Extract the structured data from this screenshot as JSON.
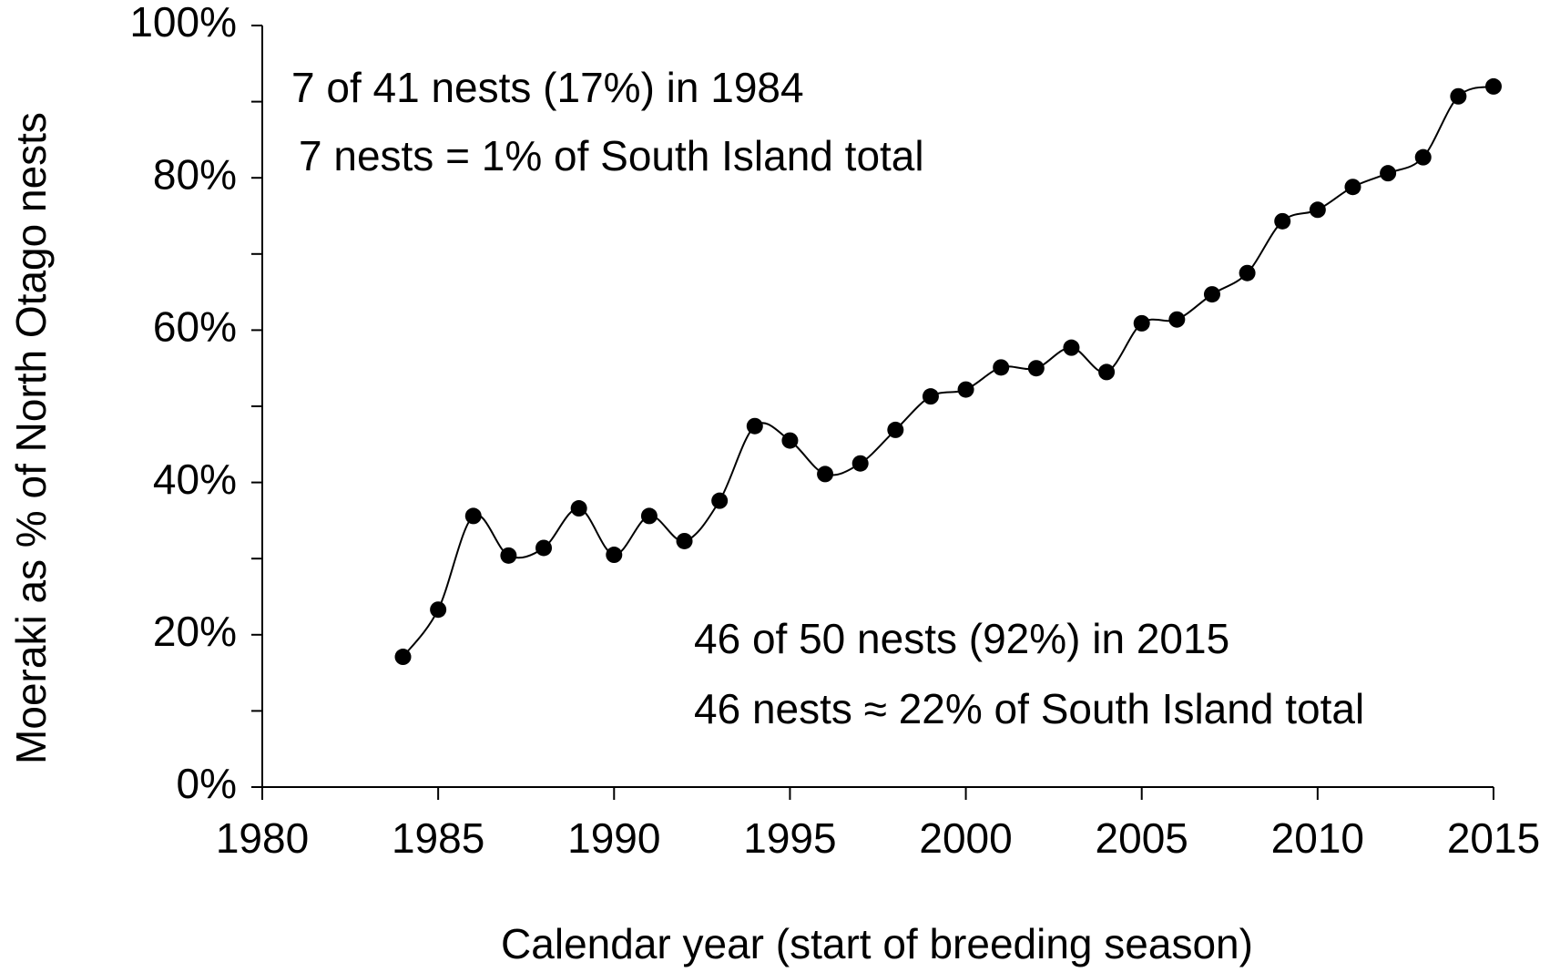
{
  "chart_data": {
    "type": "line",
    "x_label": "Calendar year (start of breeding season)",
    "y_label": "Moeraki as % of North Otago nests",
    "annotations": [
      "7 of 41 nests (17%) in 1984",
      "7 nests = 1% of South Island total",
      "46 of 50 nests (92%) in 2015",
      "46 nests ≈ 22% of South Island total"
    ],
    "x": [
      1984,
      1985,
      1986,
      1987,
      1988,
      1989,
      1990,
      1991,
      1992,
      1993,
      1994,
      1995,
      1996,
      1997,
      1998,
      1999,
      2000,
      2001,
      2002,
      2003,
      2004,
      2005,
      2006,
      2007,
      2008,
      2009,
      2010,
      2011,
      2012,
      2013,
      2014,
      2015
    ],
    "series": [
      {
        "color": "#000000",
        "values": [
          17.1,
          23.3,
          35.6,
          30.4,
          31.4,
          36.6,
          30.5,
          35.6,
          32.3,
          37.6,
          47.4,
          45.5,
          41.1,
          42.5,
          46.9,
          51.3,
          52.2,
          55.1,
          55.0,
          57.7,
          54.5,
          60.9,
          61.4,
          64.7,
          67.5,
          74.3,
          75.8,
          78.8,
          80.6,
          82.7,
          90.7,
          92.0
        ]
      }
    ],
    "xlim": [
      1980,
      2015
    ],
    "xticks": [
      1980,
      1985,
      1990,
      1995,
      2000,
      2005,
      2010,
      2015
    ],
    "ylim": [
      0,
      100
    ],
    "yticks": [
      {
        "value": 0,
        "label": "0%"
      },
      {
        "value": 20,
        "label": "20%"
      },
      {
        "value": 40,
        "label": "40%"
      },
      {
        "value": 60,
        "label": "60%"
      },
      {
        "value": 80,
        "label": "80%"
      },
      {
        "value": 100,
        "label": "100%"
      }
    ],
    "y_minor_ticks": [
      10,
      30,
      50,
      70,
      90
    ],
    "smooth": true,
    "markers": true
  }
}
